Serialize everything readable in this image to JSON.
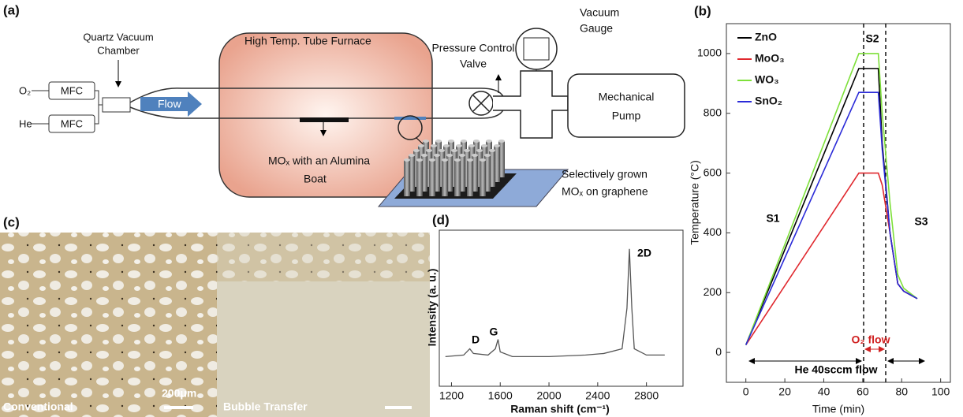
{
  "panel_a": {
    "label": "(a)",
    "chamber": [
      "Quartz Vacuum",
      "Chamber"
    ],
    "gases": [
      "O₂",
      "He"
    ],
    "mfc": [
      "MFC",
      "MFC"
    ],
    "flow": "Flow",
    "furnace": "High Temp. Tube Furnace",
    "boat": [
      "MOₓ with an Alumina",
      "Boat"
    ],
    "valve": [
      "Pressure Control",
      "Valve"
    ],
    "gauge": [
      "Vacuum",
      "Gauge"
    ],
    "pump": [
      "Mechanical",
      "Pump"
    ],
    "sample": [
      "Selectively grown",
      "MOₓ on graphene"
    ]
  },
  "panel_c": {
    "label": "(c)",
    "left": "Conventional",
    "scale": "200μm",
    "right": "Bubble Transfer"
  },
  "chart_data": [
    {
      "type": "line",
      "label": "(b)",
      "xlabel": "Time (min)",
      "ylabel": "Temperature (°C)",
      "x": [
        0,
        58,
        68,
        70,
        74,
        78,
        81,
        88
      ],
      "series": [
        {
          "name": "ZnO",
          "color": "#000000",
          "values": [
            25,
            950,
            950,
            700,
            400,
            230,
            205,
            180
          ]
        },
        {
          "name": "MoO₃",
          "color": "#e0282e",
          "values": [
            25,
            600,
            600,
            560,
            400,
            230,
            205,
            180
          ]
        },
        {
          "name": "WO₃",
          "color": "#7ee03a",
          "values": [
            25,
            1000,
            1000,
            800,
            500,
            260,
            215,
            180
          ]
        },
        {
          "name": "SnO₂",
          "color": "#2b2bd8",
          "values": [
            25,
            870,
            870,
            680,
            400,
            230,
            205,
            180
          ]
        }
      ],
      "xlim": [
        -10,
        105
      ],
      "ylim": [
        -100,
        1100
      ],
      "xticks": [
        0,
        20,
        40,
        60,
        80,
        100
      ],
      "yticks": [
        0,
        200,
        400,
        600,
        800,
        1000
      ],
      "legend": "upper left",
      "annotations": [
        "S1",
        "S2",
        "S3",
        "O₂ flow",
        "He 40sccm flow"
      ]
    },
    {
      "type": "line",
      "label": "(d)",
      "xlabel": "Raman shift  (cm⁻¹)",
      "ylabel": "Intensity (a. u.)",
      "x": [
        1150,
        1300,
        1350,
        1380,
        1500,
        1560,
        1582,
        1600,
        1700,
        2000,
        2300,
        2450,
        2600,
        2640,
        2660,
        2680,
        2700,
        2800,
        2950
      ],
      "series": [
        {
          "color": "#555555",
          "values": [
            19,
            20,
            24,
            21,
            20,
            24,
            30,
            22,
            19,
            19,
            20,
            21,
            24,
            50,
            88,
            50,
            24,
            20,
            20
          ]
        }
      ],
      "xlim": [
        1100,
        3100
      ],
      "ylim": [
        0,
        100
      ],
      "xticks": [
        1200,
        1600,
        2000,
        2400,
        2800
      ],
      "annotations": [
        "D",
        "G",
        "2D"
      ]
    }
  ]
}
